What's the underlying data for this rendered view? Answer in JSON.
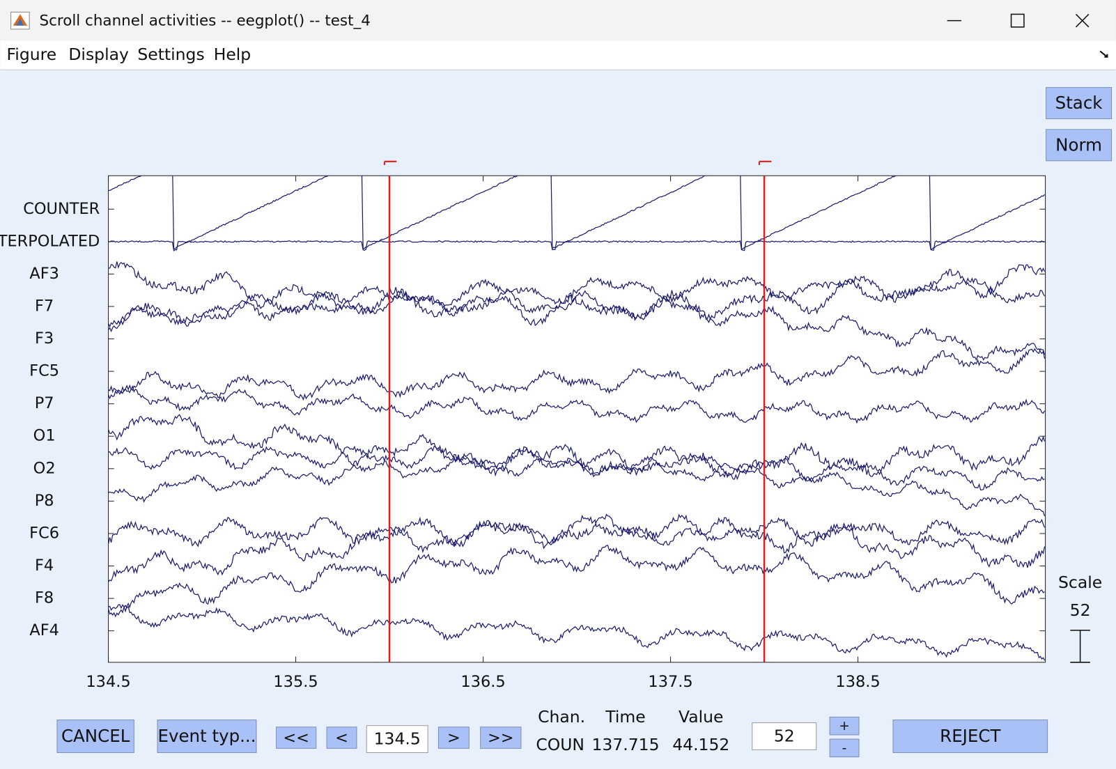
{
  "window": {
    "title": "Scroll channel activities -- eegplot() -- test_4"
  },
  "menu": [
    "Figure",
    "Display",
    "Settings",
    "Help"
  ],
  "side_buttons": [
    "Stack",
    "Norm"
  ],
  "channels": [
    "COUNTER",
    "INTERPOLATED",
    "AF3",
    "F7",
    "F3",
    "FC5",
    "P7",
    "O1",
    "O2",
    "P8",
    "FC6",
    "F4",
    "F8",
    "AF4"
  ],
  "axis": {
    "xlim": [
      134.5,
      139.5
    ],
    "xticks": [
      134.5,
      135.5,
      136.5,
      137.5,
      138.5
    ]
  },
  "events": [
    136,
    138
  ],
  "scale": {
    "label": "Scale",
    "value": 52
  },
  "controls": {
    "cancel": "CANCEL",
    "event_types": "Event typ...",
    "prev_page": "<<",
    "prev": "<",
    "next": ">",
    "next_page": ">>",
    "increase": "+",
    "decrease": "-",
    "reject": "REJECT"
  },
  "status": {
    "headers": [
      "Chan.",
      "Time",
      "Value"
    ],
    "values": [
      "COUN",
      "137.715",
      "44.152"
    ]
  }
}
